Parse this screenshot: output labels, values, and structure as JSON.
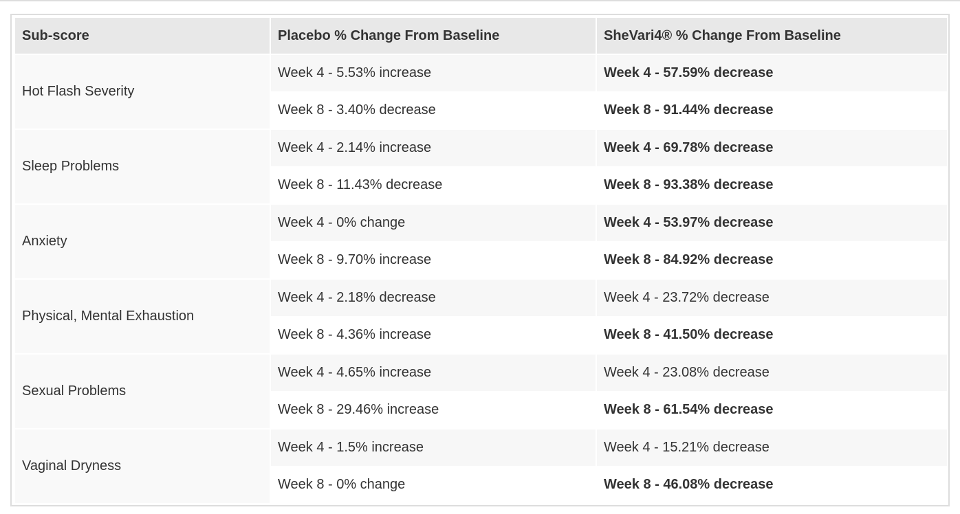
{
  "table": {
    "header": [
      "Sub-score",
      "Placebo % Change From Baseline",
      "SheVari4® % Change From Baseline"
    ],
    "rows": [
      {
        "subscore": "Hot Flash Severity",
        "weeks": [
          {
            "placebo": "Week 4 - 5.53% increase",
            "shevari": "Week 4 - 57.59% decrease",
            "shevari_bold": true
          },
          {
            "placebo": "Week 8 - 3.40% decrease",
            "shevari": "Week 8 - 91.44% decrease",
            "shevari_bold": true
          }
        ]
      },
      {
        "subscore": "Sleep Problems",
        "weeks": [
          {
            "placebo": "Week 4 - 2.14% increase",
            "shevari": "Week 4 - 69.78% decrease",
            "shevari_bold": true
          },
          {
            "placebo": "Week 8 - 11.43% decrease",
            "shevari": "Week 8 - 93.38% decrease",
            "shevari_bold": true
          }
        ]
      },
      {
        "subscore": "Anxiety",
        "weeks": [
          {
            "placebo": "Week 4 - 0% change",
            "shevari": "Week 4 - 53.97% decrease",
            "shevari_bold": true
          },
          {
            "placebo": "Week 8 - 9.70% increase",
            "shevari": "Week 8 - 84.92% decrease",
            "shevari_bold": true
          }
        ]
      },
      {
        "subscore": "Physical, Mental Exhaustion",
        "weeks": [
          {
            "placebo": "Week 4 - 2.18% decrease",
            "shevari": "Week 4 - 23.72% decrease",
            "shevari_bold": false
          },
          {
            "placebo": "Week 8 - 4.36% increase",
            "shevari": "Week 8 - 41.50% decrease",
            "shevari_bold": true
          }
        ]
      },
      {
        "subscore": "Sexual Problems",
        "weeks": [
          {
            "placebo": "Week 4 - 4.65% increase",
            "shevari": "Week 4 - 23.08% decrease",
            "shevari_bold": false
          },
          {
            "placebo": "Week 8 - 29.46% increase",
            "shevari": "Week 8 - 61.54% decrease",
            "shevari_bold": true
          }
        ]
      },
      {
        "subscore": "Vaginal Dryness",
        "weeks": [
          {
            "placebo": "Week 4 - 1.5% increase",
            "shevari": "Week 4 - 15.21% decrease",
            "shevari_bold": false
          },
          {
            "placebo": "Week 8 - 0% change",
            "shevari": "Week 8 - 46.08% decrease",
            "shevari_bold": true
          }
        ]
      }
    ]
  }
}
